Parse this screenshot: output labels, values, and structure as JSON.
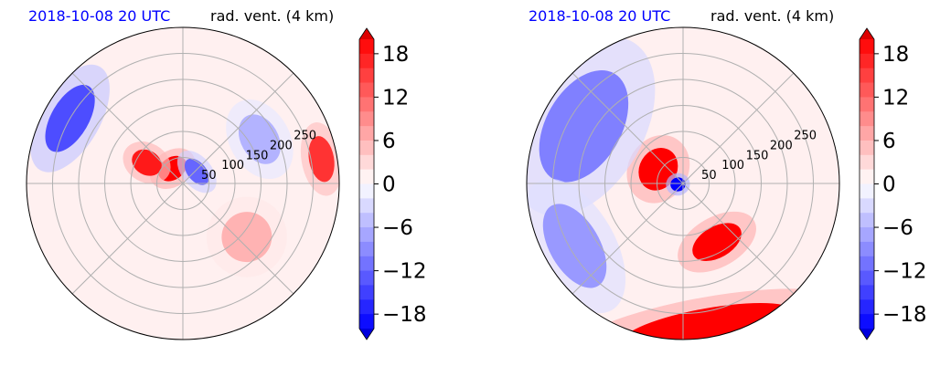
{
  "chart_data": [
    {
      "type": "heatmap",
      "projection": "polar",
      "title_time": "2018-10-08 20 UTC",
      "title_variable": "rad. vent. (4 km)",
      "radial_ticks": [
        50,
        100,
        150,
        200,
        250
      ],
      "radial_max": 300,
      "angular_gridlines_deg": [
        0,
        45,
        90,
        135,
        180,
        225,
        270,
        315
      ],
      "grid": true,
      "features": [
        {
          "kind": "positive",
          "value": 20,
          "angle": 125,
          "r": 35,
          "spread_r": 18,
          "spread_a": 40
        },
        {
          "kind": "positive",
          "value": 18,
          "angle": 150,
          "r": 80,
          "spread_r": 25,
          "spread_a": 12
        },
        {
          "kind": "negative",
          "value": -12,
          "angle": 40,
          "r": 35,
          "spread_r": 15,
          "spread_a": 40
        },
        {
          "kind": "positive",
          "value": 16,
          "angle": 10,
          "r": 270,
          "spread_r": 20,
          "spread_a": 8
        },
        {
          "kind": "negative",
          "value": -14,
          "angle": 150,
          "r": 250,
          "spread_r": 30,
          "spread_a": 15
        },
        {
          "kind": "negative",
          "value": -6,
          "angle": 30,
          "r": 170,
          "spread_r": 30,
          "spread_a": 15
        },
        {
          "kind": "positive",
          "value": 6,
          "angle": -40,
          "r": 160,
          "spread_r": 40,
          "spread_a": 15
        }
      ]
    },
    {
      "type": "heatmap",
      "projection": "polar",
      "title_time": "2018-10-08 20 UTC",
      "title_variable": "rad. vent. (4 km)",
      "radial_ticks": [
        50,
        100,
        150,
        200,
        250
      ],
      "radial_max": 300,
      "angular_gridlines_deg": [
        0,
        45,
        90,
        135,
        180,
        225,
        270,
        315
      ],
      "grid": true,
      "features": [
        {
          "kind": "positive",
          "value": 20,
          "angle": 150,
          "r": 55,
          "spread_r": 30,
          "spread_a": 40
        },
        {
          "kind": "negative",
          "value": -20,
          "angle": 190,
          "r": 10,
          "spread_r": 12,
          "spread_a": 40
        },
        {
          "kind": "positive",
          "value": 20,
          "angle": -60,
          "r": 130,
          "spread_r": 25,
          "spread_a": 20
        },
        {
          "kind": "positive",
          "value": 20,
          "angle": -80,
          "r": 280,
          "spread_r": 30,
          "spread_a": 35
        },
        {
          "kind": "negative",
          "value": -10,
          "angle": 150,
          "r": 220,
          "spread_r": 60,
          "spread_a": 30
        },
        {
          "kind": "negative",
          "value": -8,
          "angle": 210,
          "r": 240,
          "spread_r": 40,
          "spread_a": 20
        }
      ]
    }
  ],
  "colorbar": {
    "ticks": [
      18,
      12,
      6,
      0,
      -6,
      -12,
      -18
    ],
    "tick_labels": [
      "18",
      "12",
      "6",
      "0",
      "−6",
      "−12",
      "−18"
    ],
    "range": [
      -20,
      20
    ],
    "levels": 20,
    "colors": {
      "neg": "#0000ff",
      "zero": "#ffffff",
      "pos": "#ff0000"
    }
  }
}
